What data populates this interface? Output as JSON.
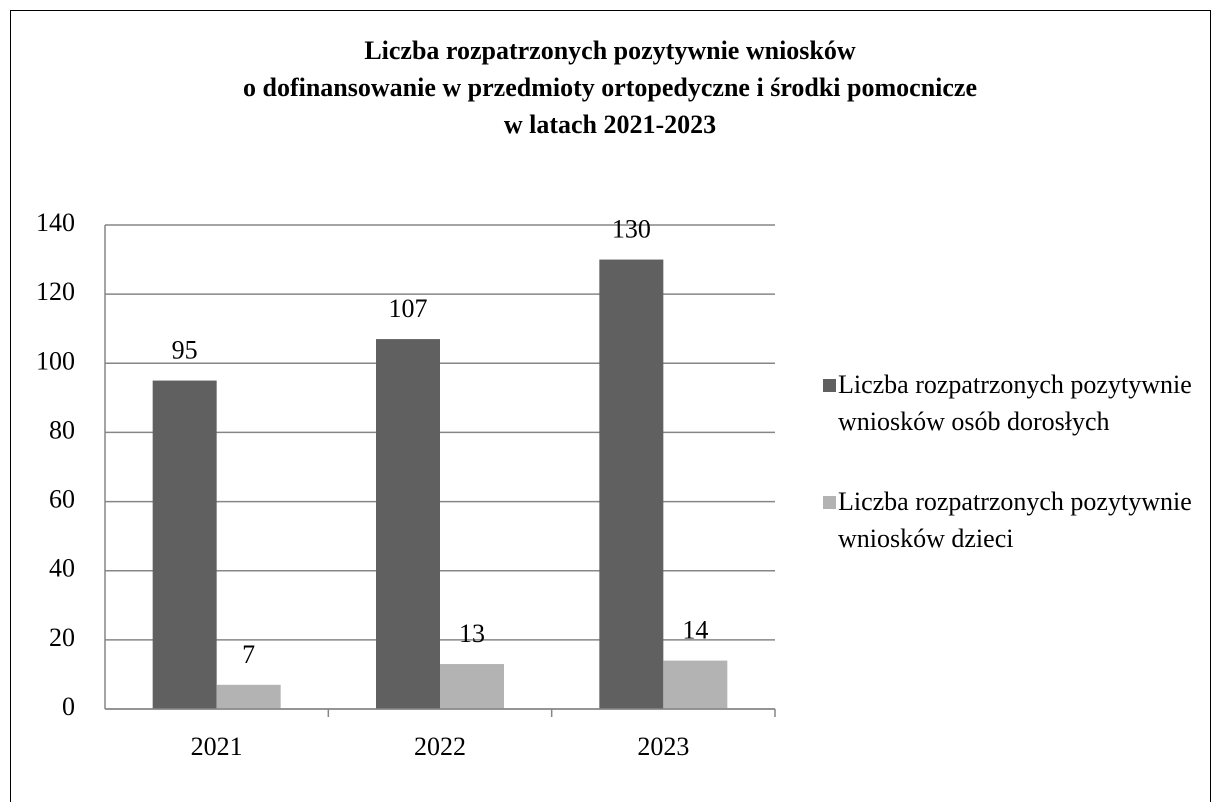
{
  "chart_data": {
    "type": "bar",
    "title": "Liczba rozpatrzonych pozytywnie wniosków\no dofinansowanie w przedmioty ortopedyczne i środki pomocnicze\nw latach 2021-2023",
    "categories": [
      "2021",
      "2022",
      "2023"
    ],
    "series": [
      {
        "name": "Liczba rozpatrzonych pozytywnie wniosków osób dorosłych",
        "color": "#606060",
        "values": [
          95,
          107,
          130
        ]
      },
      {
        "name": "Liczba rozpatrzonych pozytywnie wniosków dzieci",
        "color": "#b3b3b3",
        "values": [
          7,
          13,
          14
        ]
      }
    ],
    "ylim": [
      0,
      140
    ],
    "yticks": [
      0,
      20,
      40,
      60,
      80,
      100,
      120,
      140
    ],
    "grid": true,
    "legend": "right"
  }
}
